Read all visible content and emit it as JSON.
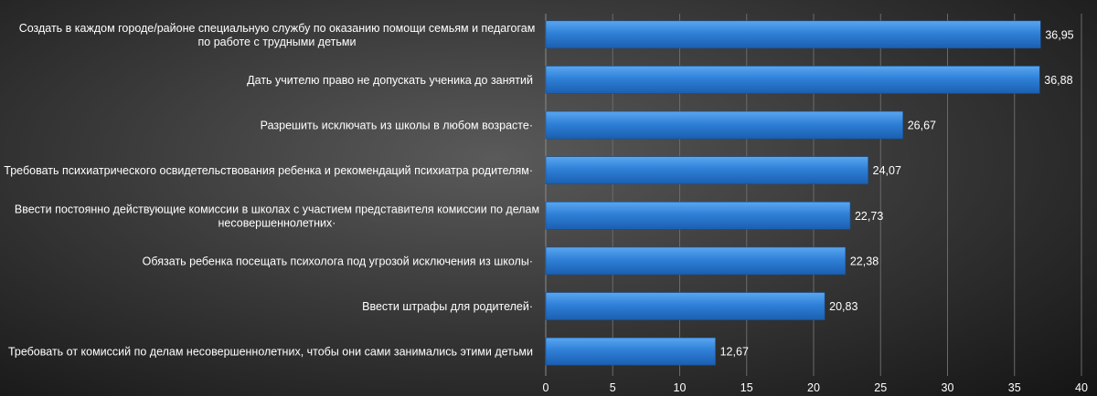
{
  "chart_data": {
    "type": "bar",
    "orientation": "horizontal",
    "title": "",
    "xlabel": "",
    "ylabel": "",
    "xlim": [
      0,
      40
    ],
    "xticks": [
      "0",
      "5",
      "10",
      "15",
      "20",
      "25",
      "30",
      "35",
      "40"
    ],
    "grid": true,
    "legend": "none",
    "bar_color": "#2f80d8",
    "categories": [
      [
        "Создать в каждом городе/районе специальную службу по оказанию помощи семьям и педагогам",
        "по работе с трудными детьми"
      ],
      [
        "Дать учителю право не допускать ученика до занятий"
      ],
      [
        "Разрешить исключать из школы в любом возрасте·"
      ],
      [
        "Требовать психиатрического освидетельствования ребенка и рекомендаций психиатра родителям·"
      ],
      [
        "Ввести постоянно действующие комиссии в школах с участием представителя комиссии по делам",
        "несовершеннолетних·"
      ],
      [
        "Обязать ребенка посещать психолога под угрозой исключения из школы·"
      ],
      [
        "Ввести штрафы для родителей·"
      ],
      [
        "Требовать от комиссий по делам несовершеннолетних, чтобы они сами занимались этими детьми"
      ]
    ],
    "values": [
      36.95,
      36.88,
      26.67,
      24.07,
      22.73,
      22.38,
      20.83,
      12.67
    ],
    "value_labels": [
      "36,95",
      "36,88",
      "26,67",
      "24,07",
      "22,73",
      "22,38",
      "20,83",
      "12,67"
    ]
  }
}
